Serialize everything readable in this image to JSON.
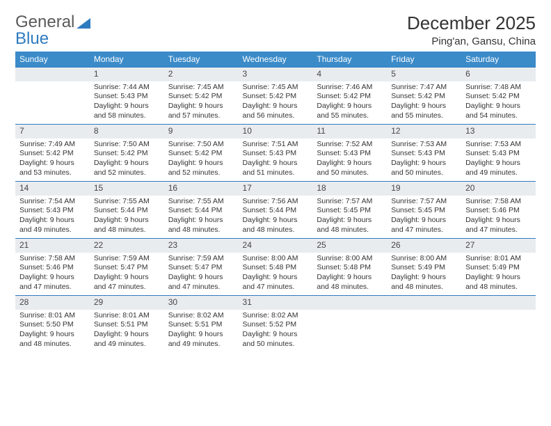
{
  "brand": {
    "part1": "General",
    "part2": "Blue"
  },
  "title": "December 2025",
  "location": "Ping'an, Gansu, China",
  "colors": {
    "header_bg": "#3b8bc9",
    "header_text": "#ffffff",
    "daynum_bg": "#e9ecef",
    "row_border": "#2f7bbf",
    "body_text": "#333333",
    "brand_gray": "#5a5a5a",
    "brand_blue": "#2f7bbf"
  },
  "dayNames": [
    "Sunday",
    "Monday",
    "Tuesday",
    "Wednesday",
    "Thursday",
    "Friday",
    "Saturday"
  ],
  "weeks": [
    [
      {
        "num": "",
        "sunrise": "",
        "sunset": "",
        "daylight": ""
      },
      {
        "num": "1",
        "sunrise": "Sunrise: 7:44 AM",
        "sunset": "Sunset: 5:43 PM",
        "daylight": "Daylight: 9 hours and 58 minutes."
      },
      {
        "num": "2",
        "sunrise": "Sunrise: 7:45 AM",
        "sunset": "Sunset: 5:42 PM",
        "daylight": "Daylight: 9 hours and 57 minutes."
      },
      {
        "num": "3",
        "sunrise": "Sunrise: 7:45 AM",
        "sunset": "Sunset: 5:42 PM",
        "daylight": "Daylight: 9 hours and 56 minutes."
      },
      {
        "num": "4",
        "sunrise": "Sunrise: 7:46 AM",
        "sunset": "Sunset: 5:42 PM",
        "daylight": "Daylight: 9 hours and 55 minutes."
      },
      {
        "num": "5",
        "sunrise": "Sunrise: 7:47 AM",
        "sunset": "Sunset: 5:42 PM",
        "daylight": "Daylight: 9 hours and 55 minutes."
      },
      {
        "num": "6",
        "sunrise": "Sunrise: 7:48 AM",
        "sunset": "Sunset: 5:42 PM",
        "daylight": "Daylight: 9 hours and 54 minutes."
      }
    ],
    [
      {
        "num": "7",
        "sunrise": "Sunrise: 7:49 AM",
        "sunset": "Sunset: 5:42 PM",
        "daylight": "Daylight: 9 hours and 53 minutes."
      },
      {
        "num": "8",
        "sunrise": "Sunrise: 7:50 AM",
        "sunset": "Sunset: 5:42 PM",
        "daylight": "Daylight: 9 hours and 52 minutes."
      },
      {
        "num": "9",
        "sunrise": "Sunrise: 7:50 AM",
        "sunset": "Sunset: 5:42 PM",
        "daylight": "Daylight: 9 hours and 52 minutes."
      },
      {
        "num": "10",
        "sunrise": "Sunrise: 7:51 AM",
        "sunset": "Sunset: 5:43 PM",
        "daylight": "Daylight: 9 hours and 51 minutes."
      },
      {
        "num": "11",
        "sunrise": "Sunrise: 7:52 AM",
        "sunset": "Sunset: 5:43 PM",
        "daylight": "Daylight: 9 hours and 50 minutes."
      },
      {
        "num": "12",
        "sunrise": "Sunrise: 7:53 AM",
        "sunset": "Sunset: 5:43 PM",
        "daylight": "Daylight: 9 hours and 50 minutes."
      },
      {
        "num": "13",
        "sunrise": "Sunrise: 7:53 AM",
        "sunset": "Sunset: 5:43 PM",
        "daylight": "Daylight: 9 hours and 49 minutes."
      }
    ],
    [
      {
        "num": "14",
        "sunrise": "Sunrise: 7:54 AM",
        "sunset": "Sunset: 5:43 PM",
        "daylight": "Daylight: 9 hours and 49 minutes."
      },
      {
        "num": "15",
        "sunrise": "Sunrise: 7:55 AM",
        "sunset": "Sunset: 5:44 PM",
        "daylight": "Daylight: 9 hours and 48 minutes."
      },
      {
        "num": "16",
        "sunrise": "Sunrise: 7:55 AM",
        "sunset": "Sunset: 5:44 PM",
        "daylight": "Daylight: 9 hours and 48 minutes."
      },
      {
        "num": "17",
        "sunrise": "Sunrise: 7:56 AM",
        "sunset": "Sunset: 5:44 PM",
        "daylight": "Daylight: 9 hours and 48 minutes."
      },
      {
        "num": "18",
        "sunrise": "Sunrise: 7:57 AM",
        "sunset": "Sunset: 5:45 PM",
        "daylight": "Daylight: 9 hours and 48 minutes."
      },
      {
        "num": "19",
        "sunrise": "Sunrise: 7:57 AM",
        "sunset": "Sunset: 5:45 PM",
        "daylight": "Daylight: 9 hours and 47 minutes."
      },
      {
        "num": "20",
        "sunrise": "Sunrise: 7:58 AM",
        "sunset": "Sunset: 5:46 PM",
        "daylight": "Daylight: 9 hours and 47 minutes."
      }
    ],
    [
      {
        "num": "21",
        "sunrise": "Sunrise: 7:58 AM",
        "sunset": "Sunset: 5:46 PM",
        "daylight": "Daylight: 9 hours and 47 minutes."
      },
      {
        "num": "22",
        "sunrise": "Sunrise: 7:59 AM",
        "sunset": "Sunset: 5:47 PM",
        "daylight": "Daylight: 9 hours and 47 minutes."
      },
      {
        "num": "23",
        "sunrise": "Sunrise: 7:59 AM",
        "sunset": "Sunset: 5:47 PM",
        "daylight": "Daylight: 9 hours and 47 minutes."
      },
      {
        "num": "24",
        "sunrise": "Sunrise: 8:00 AM",
        "sunset": "Sunset: 5:48 PM",
        "daylight": "Daylight: 9 hours and 47 minutes."
      },
      {
        "num": "25",
        "sunrise": "Sunrise: 8:00 AM",
        "sunset": "Sunset: 5:48 PM",
        "daylight": "Daylight: 9 hours and 48 minutes."
      },
      {
        "num": "26",
        "sunrise": "Sunrise: 8:00 AM",
        "sunset": "Sunset: 5:49 PM",
        "daylight": "Daylight: 9 hours and 48 minutes."
      },
      {
        "num": "27",
        "sunrise": "Sunrise: 8:01 AM",
        "sunset": "Sunset: 5:49 PM",
        "daylight": "Daylight: 9 hours and 48 minutes."
      }
    ],
    [
      {
        "num": "28",
        "sunrise": "Sunrise: 8:01 AM",
        "sunset": "Sunset: 5:50 PM",
        "daylight": "Daylight: 9 hours and 48 minutes."
      },
      {
        "num": "29",
        "sunrise": "Sunrise: 8:01 AM",
        "sunset": "Sunset: 5:51 PM",
        "daylight": "Daylight: 9 hours and 49 minutes."
      },
      {
        "num": "30",
        "sunrise": "Sunrise: 8:02 AM",
        "sunset": "Sunset: 5:51 PM",
        "daylight": "Daylight: 9 hours and 49 minutes."
      },
      {
        "num": "31",
        "sunrise": "Sunrise: 8:02 AM",
        "sunset": "Sunset: 5:52 PM",
        "daylight": "Daylight: 9 hours and 50 minutes."
      },
      {
        "num": "",
        "sunrise": "",
        "sunset": "",
        "daylight": ""
      },
      {
        "num": "",
        "sunrise": "",
        "sunset": "",
        "daylight": ""
      },
      {
        "num": "",
        "sunrise": "",
        "sunset": "",
        "daylight": ""
      }
    ]
  ]
}
